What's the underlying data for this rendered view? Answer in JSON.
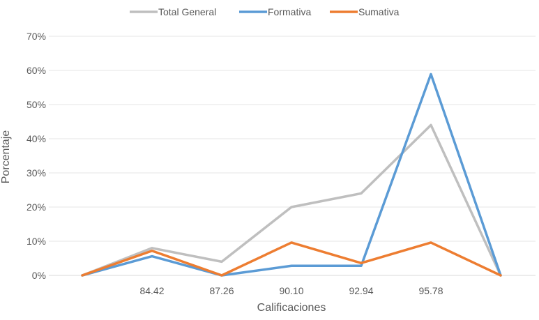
{
  "chart_data": {
    "type": "line",
    "x": [
      "",
      "84.42",
      "87.26",
      "90.10",
      "92.94",
      "95.78",
      ""
    ],
    "xlabel": "Calificaciones",
    "ylabel": "Porcentaje",
    "ylim": [
      0,
      70
    ],
    "yticks": [
      "0%",
      "10%",
      "20%",
      "30%",
      "40%",
      "50%",
      "60%",
      "70%"
    ],
    "grid": true,
    "legend_position": "top",
    "series": [
      {
        "name": "Total General",
        "color": "#bfbfbf",
        "values": [
          0,
          8,
          4,
          20,
          24,
          44,
          0
        ]
      },
      {
        "name": "Formativa",
        "color": "#5b9bd5",
        "values": [
          0,
          5.6,
          0,
          2.8,
          2.8,
          58.9,
          0
        ]
      },
      {
        "name": "Sumativa",
        "color": "#ed7d31",
        "values": [
          0,
          7.2,
          0,
          9.6,
          3.6,
          9.6,
          0
        ]
      }
    ]
  }
}
